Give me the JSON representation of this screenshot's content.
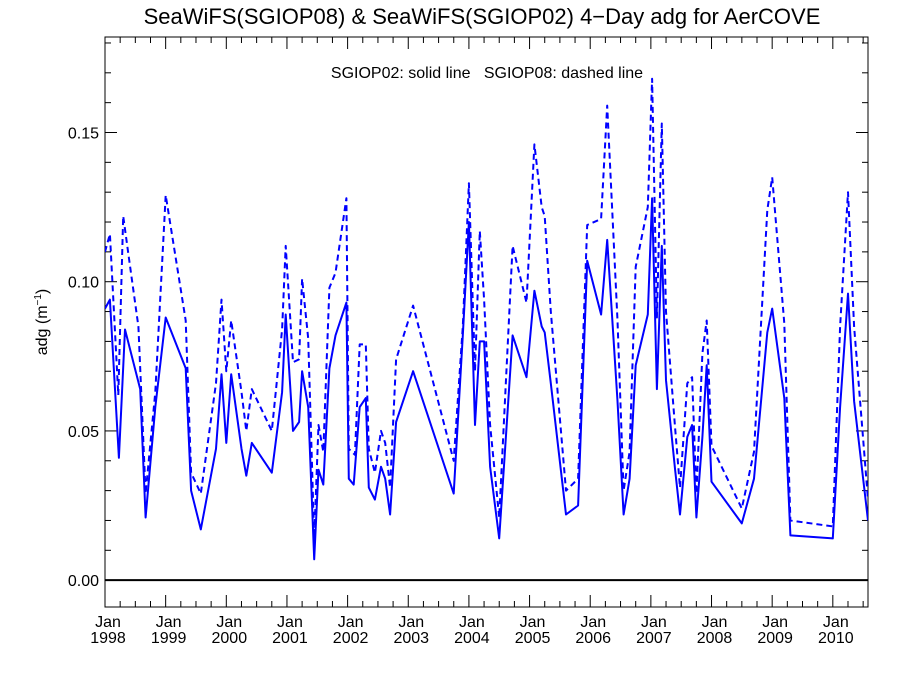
{
  "chart_data": {
    "type": "line",
    "title": "SeaWiFS(SGIOP08) & SeaWiFS(SGIOP02) 4−Day adg for AerCOVE",
    "legend_text": "SGIOP02: solid line   SGIOP08: dashed line",
    "ylabel": "adg (m",
    "ylabel_sup": "−1",
    "ylabel_close": ")",
    "xlabel": "",
    "ylim": [
      -0.009,
      0.182
    ],
    "xlim": [
      1998.0,
      2010.58
    ],
    "grid": false,
    "zero_line": true,
    "y_ticks": [
      {
        "value": 0.0,
        "label": "0.00"
      },
      {
        "value": 0.05,
        "label": "0.05"
      },
      {
        "value": 0.1,
        "label": "0.10"
      },
      {
        "value": 0.15,
        "label": "0.15"
      }
    ],
    "x_ticks": [
      {
        "value": 1998,
        "month": "Jan",
        "year": "1998"
      },
      {
        "value": 1999,
        "month": "Jan",
        "year": "1999"
      },
      {
        "value": 2000,
        "month": "Jan",
        "year": "2000"
      },
      {
        "value": 2001,
        "month": "Jan",
        "year": "2001"
      },
      {
        "value": 2002,
        "month": "Jan",
        "year": "2002"
      },
      {
        "value": 2003,
        "month": "Jan",
        "year": "2003"
      },
      {
        "value": 2004,
        "month": "Jan",
        "year": "2004"
      },
      {
        "value": 2005,
        "month": "Jan",
        "year": "2005"
      },
      {
        "value": 2006,
        "month": "Jan",
        "year": "2006"
      },
      {
        "value": 2007,
        "month": "Jan",
        "year": "2007"
      },
      {
        "value": 2008,
        "month": "Jan",
        "year": "2008"
      },
      {
        "value": 2009,
        "month": "Jan",
        "year": "2009"
      },
      {
        "value": 2010,
        "month": "Jan",
        "year": "2010"
      }
    ],
    "series": [
      {
        "name": "SGIOP02",
        "style": "solid",
        "color": "#0000ff",
        "points": [
          [
            1998.0,
            0.091
          ],
          [
            1998.08,
            0.094
          ],
          [
            1998.23,
            0.041
          ],
          [
            1998.33,
            0.084
          ],
          [
            1998.58,
            0.064
          ],
          [
            1998.67,
            0.021
          ],
          [
            1998.83,
            0.058
          ],
          [
            1999.0,
            0.088
          ],
          [
            1999.33,
            0.071
          ],
          [
            1999.42,
            0.03
          ],
          [
            1999.58,
            0.017
          ],
          [
            1999.83,
            0.044
          ],
          [
            1999.92,
            0.069
          ],
          [
            2000.0,
            0.046
          ],
          [
            2000.08,
            0.069
          ],
          [
            2000.25,
            0.044
          ],
          [
            2000.33,
            0.035
          ],
          [
            2000.42,
            0.046
          ],
          [
            2000.75,
            0.036
          ],
          [
            2000.92,
            0.063
          ],
          [
            2000.98,
            0.089
          ],
          [
            2001.1,
            0.05
          ],
          [
            2001.2,
            0.053
          ],
          [
            2001.25,
            0.07
          ],
          [
            2001.35,
            0.058
          ],
          [
            2001.45,
            0.007
          ],
          [
            2001.52,
            0.037
          ],
          [
            2001.6,
            0.032
          ],
          [
            2001.7,
            0.071
          ],
          [
            2001.8,
            0.082
          ],
          [
            2001.98,
            0.093
          ],
          [
            2002.02,
            0.034
          ],
          [
            2002.1,
            0.032
          ],
          [
            2002.2,
            0.058
          ],
          [
            2002.3,
            0.061
          ],
          [
            2002.35,
            0.031
          ],
          [
            2002.45,
            0.027
          ],
          [
            2002.55,
            0.038
          ],
          [
            2002.62,
            0.034
          ],
          [
            2002.7,
            0.022
          ],
          [
            2002.8,
            0.053
          ],
          [
            2003.08,
            0.07
          ],
          [
            2003.75,
            0.029
          ],
          [
            2003.9,
            0.082
          ],
          [
            2004.0,
            0.12
          ],
          [
            2004.1,
            0.052
          ],
          [
            2004.18,
            0.08
          ],
          [
            2004.25,
            0.08
          ],
          [
            2004.35,
            0.038
          ],
          [
            2004.5,
            0.014
          ],
          [
            2004.72,
            0.082
          ],
          [
            2004.95,
            0.068
          ],
          [
            2005.08,
            0.097
          ],
          [
            2005.2,
            0.085
          ],
          [
            2005.25,
            0.083
          ],
          [
            2005.35,
            0.066
          ],
          [
            2005.6,
            0.022
          ],
          [
            2005.8,
            0.025
          ],
          [
            2005.95,
            0.107
          ],
          [
            2006.18,
            0.089
          ],
          [
            2006.28,
            0.114
          ],
          [
            2006.45,
            0.06
          ],
          [
            2006.55,
            0.022
          ],
          [
            2006.65,
            0.034
          ],
          [
            2006.75,
            0.072
          ],
          [
            2006.95,
            0.089
          ],
          [
            2007.02,
            0.128
          ],
          [
            2007.1,
            0.064
          ],
          [
            2007.18,
            0.112
          ],
          [
            2007.25,
            0.067
          ],
          [
            2007.4,
            0.037
          ],
          [
            2007.48,
            0.022
          ],
          [
            2007.6,
            0.048
          ],
          [
            2007.68,
            0.052
          ],
          [
            2007.75,
            0.021
          ],
          [
            2007.85,
            0.048
          ],
          [
            2007.92,
            0.072
          ],
          [
            2008.0,
            0.033
          ],
          [
            2008.5,
            0.019
          ],
          [
            2008.7,
            0.034
          ],
          [
            2008.92,
            0.083
          ],
          [
            2009.0,
            0.091
          ],
          [
            2009.2,
            0.061
          ],
          [
            2009.3,
            0.015
          ],
          [
            2010.0,
            0.014
          ],
          [
            2010.12,
            0.058
          ],
          [
            2010.25,
            0.096
          ],
          [
            2010.35,
            0.06
          ],
          [
            2010.58,
            0.02
          ]
        ]
      },
      {
        "name": "SGIOP08",
        "style": "dashed",
        "color": "#0000ff",
        "points": [
          [
            1998.0,
            0.11
          ],
          [
            1998.08,
            0.116
          ],
          [
            1998.22,
            0.062
          ],
          [
            1998.3,
            0.122
          ],
          [
            1998.4,
            0.107
          ],
          [
            1998.55,
            0.085
          ],
          [
            1998.67,
            0.029
          ],
          [
            1998.83,
            0.063
          ],
          [
            1999.0,
            0.129
          ],
          [
            1999.33,
            0.087
          ],
          [
            1999.42,
            0.036
          ],
          [
            1999.58,
            0.029
          ],
          [
            1999.83,
            0.066
          ],
          [
            1999.92,
            0.094
          ],
          [
            2000.0,
            0.07
          ],
          [
            2000.08,
            0.087
          ],
          [
            2000.25,
            0.063
          ],
          [
            2000.33,
            0.05
          ],
          [
            2000.42,
            0.064
          ],
          [
            2000.75,
            0.05
          ],
          [
            2000.92,
            0.084
          ],
          [
            2000.98,
            0.112
          ],
          [
            2001.1,
            0.073
          ],
          [
            2001.2,
            0.074
          ],
          [
            2001.25,
            0.101
          ],
          [
            2001.35,
            0.081
          ],
          [
            2001.45,
            0.014
          ],
          [
            2001.52,
            0.052
          ],
          [
            2001.6,
            0.043
          ],
          [
            2001.7,
            0.098
          ],
          [
            2001.8,
            0.103
          ],
          [
            2001.98,
            0.128
          ],
          [
            2002.02,
            0.044
          ],
          [
            2002.12,
            0.042
          ],
          [
            2002.2,
            0.079
          ],
          [
            2002.3,
            0.079
          ],
          [
            2002.35,
            0.044
          ],
          [
            2002.45,
            0.036
          ],
          [
            2002.55,
            0.05
          ],
          [
            2002.62,
            0.046
          ],
          [
            2002.7,
            0.031
          ],
          [
            2002.8,
            0.074
          ],
          [
            2003.08,
            0.092
          ],
          [
            2003.75,
            0.04
          ],
          [
            2003.9,
            0.085
          ],
          [
            2004.0,
            0.133
          ],
          [
            2004.1,
            0.07
          ],
          [
            2004.18,
            0.117
          ],
          [
            2004.25,
            0.094
          ],
          [
            2004.35,
            0.052
          ],
          [
            2004.5,
            0.021
          ],
          [
            2004.72,
            0.112
          ],
          [
            2004.95,
            0.093
          ],
          [
            2005.08,
            0.146
          ],
          [
            2005.2,
            0.125
          ],
          [
            2005.25,
            0.122
          ],
          [
            2005.35,
            0.09
          ],
          [
            2005.6,
            0.03
          ],
          [
            2005.8,
            0.034
          ],
          [
            2005.95,
            0.119
          ],
          [
            2006.18,
            0.121
          ],
          [
            2006.28,
            0.159
          ],
          [
            2006.45,
            0.087
          ],
          [
            2006.55,
            0.03
          ],
          [
            2006.65,
            0.043
          ],
          [
            2006.75,
            0.105
          ],
          [
            2006.95,
            0.125
          ],
          [
            2007.02,
            0.168
          ],
          [
            2007.1,
            0.088
          ],
          [
            2007.18,
            0.153
          ],
          [
            2007.25,
            0.09
          ],
          [
            2007.4,
            0.051
          ],
          [
            2007.48,
            0.031
          ],
          [
            2007.6,
            0.066
          ],
          [
            2007.68,
            0.068
          ],
          [
            2007.75,
            0.029
          ],
          [
            2007.85,
            0.076
          ],
          [
            2007.92,
            0.087
          ],
          [
            2008.0,
            0.045
          ],
          [
            2008.5,
            0.024
          ],
          [
            2008.7,
            0.043
          ],
          [
            2008.92,
            0.124
          ],
          [
            2009.0,
            0.135
          ],
          [
            2009.2,
            0.086
          ],
          [
            2009.3,
            0.02
          ],
          [
            2010.0,
            0.018
          ],
          [
            2010.12,
            0.085
          ],
          [
            2010.25,
            0.13
          ],
          [
            2010.35,
            0.085
          ],
          [
            2010.58,
            0.027
          ]
        ]
      }
    ]
  }
}
